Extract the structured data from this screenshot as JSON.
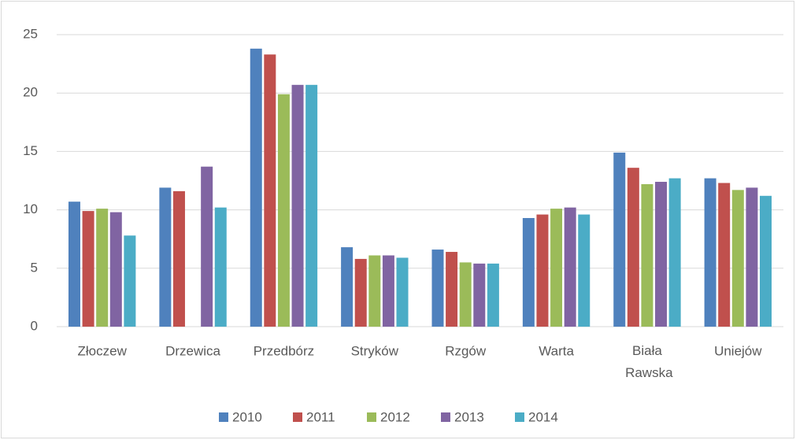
{
  "chart_data": {
    "type": "bar",
    "categories": [
      "Złoczew",
      "Drzewica",
      "Przedbórz",
      "Stryków",
      "Rzgów",
      "Warta",
      "Biała Rawska",
      "Uniejów"
    ],
    "series": [
      {
        "name": "2010",
        "color": "#4f81bd",
        "values": [
          10.7,
          11.9,
          23.8,
          6.8,
          6.6,
          9.3,
          14.9,
          12.7
        ]
      },
      {
        "name": "2011",
        "color": "#c0504d",
        "values": [
          9.9,
          11.6,
          23.3,
          5.8,
          6.4,
          9.6,
          13.6,
          12.3
        ]
      },
      {
        "name": "2012",
        "color": "#9bbb59",
        "values": [
          10.1,
          null,
          19.9,
          6.1,
          5.5,
          10.1,
          12.2,
          11.7
        ]
      },
      {
        "name": "2013",
        "color": "#8064a2",
        "values": [
          9.8,
          13.7,
          20.7,
          6.1,
          5.4,
          10.2,
          12.4,
          11.9
        ]
      },
      {
        "name": "2014",
        "color": "#4bacc6",
        "values": [
          7.8,
          10.2,
          20.7,
          5.9,
          5.4,
          9.6,
          12.7,
          11.2
        ]
      }
    ],
    "ylim": [
      0,
      25
    ],
    "yticks": [
      0,
      5,
      10,
      15,
      20,
      25
    ],
    "grid": true,
    "legend": "bottom"
  }
}
